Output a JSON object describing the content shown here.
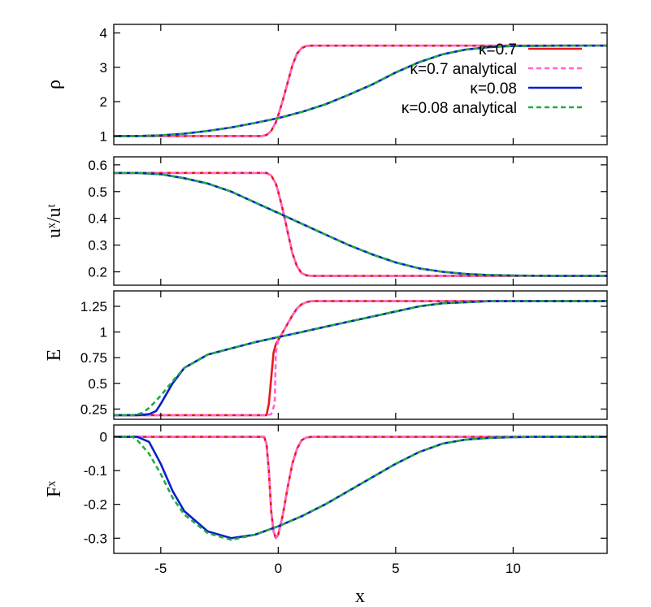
{
  "chart_data": {
    "type": "line",
    "xlabel": "x",
    "xlim": [
      -7,
      14
    ],
    "xticks": [
      -5,
      0,
      5,
      10
    ],
    "xtick_labels": [
      "-5",
      "0",
      "5",
      "10"
    ],
    "grid": false,
    "legend": {
      "placement": "right, inside top panel",
      "entries": [
        {
          "label": "κ=0.7",
          "color": "#e41a1c",
          "style": "solid"
        },
        {
          "label": "κ=0.7 analytical",
          "color": "#ff66cc",
          "style": "dashed"
        },
        {
          "label": "κ=0.08",
          "color": "#0a1ecc",
          "style": "solid"
        },
        {
          "label": "κ=0.08 analytical",
          "color": "#22aa44",
          "style": "dashed"
        }
      ]
    },
    "panels": [
      {
        "ylabel": "ρ",
        "ylim": [
          0.75,
          4.25
        ],
        "yticks": [
          1,
          2,
          3,
          4
        ],
        "ytick_labels": [
          "1",
          "2",
          "3",
          "4"
        ],
        "series": [
          {
            "name": "κ=0.7",
            "color": "#e41a1c",
            "dash": "",
            "x": [
              -7,
              -0.7,
              -0.5,
              -0.3,
              -0.1,
              0,
              0.2,
              0.4,
              0.6,
              0.8,
              1.0,
              1.2,
              1.4,
              14
            ],
            "y": [
              1.0,
              1.0,
              1.03,
              1.15,
              1.4,
              1.6,
              2.05,
              2.55,
              3.05,
              3.4,
              3.56,
              3.62,
              3.63,
              3.63
            ]
          },
          {
            "name": "κ=0.7 analytical",
            "color": "#ff66cc",
            "dash": "6,4",
            "x": [
              -7,
              -0.7,
              -0.5,
              -0.3,
              -0.1,
              0,
              0.2,
              0.4,
              0.6,
              0.8,
              1.0,
              1.2,
              1.4,
              14
            ],
            "y": [
              1.0,
              1.0,
              1.03,
              1.15,
              1.4,
              1.6,
              2.05,
              2.55,
              3.05,
              3.4,
              3.56,
              3.62,
              3.63,
              3.63
            ]
          },
          {
            "name": "κ=0.08",
            "color": "#0a1ecc",
            "dash": "",
            "x": [
              -7,
              -6,
              -5,
              -4,
              -3,
              -2,
              -1,
              0,
              1,
              2,
              3,
              4,
              5,
              6,
              7,
              8,
              9,
              10,
              12,
              14
            ],
            "y": [
              1.0,
              1.0,
              1.02,
              1.07,
              1.15,
              1.25,
              1.38,
              1.52,
              1.7,
              1.92,
              2.2,
              2.5,
              2.85,
              3.15,
              3.38,
              3.52,
              3.59,
              3.62,
              3.63,
              3.63
            ]
          },
          {
            "name": "κ=0.08 analytical",
            "color": "#22aa44",
            "dash": "6,4",
            "x": [
              -7,
              -6,
              -5,
              -4,
              -3,
              -2,
              -1,
              0,
              1,
              2,
              3,
              4,
              5,
              6,
              7,
              8,
              9,
              10,
              12,
              14
            ],
            "y": [
              1.0,
              1.0,
              1.02,
              1.07,
              1.15,
              1.25,
              1.38,
              1.52,
              1.7,
              1.92,
              2.2,
              2.5,
              2.85,
              3.15,
              3.38,
              3.52,
              3.59,
              3.62,
              3.63,
              3.63
            ]
          }
        ]
      },
      {
        "ylabel": "uˣ/uᵗ",
        "ylim": [
          0.15,
          0.63
        ],
        "yticks": [
          0.2,
          0.3,
          0.4,
          0.5,
          0.6
        ],
        "ytick_labels": [
          "0.2",
          "0.3",
          "0.4",
          "0.5",
          "0.6"
        ],
        "series": [
          {
            "name": "κ=0.7",
            "color": "#e41a1c",
            "dash": "",
            "x": [
              -7,
              -0.5,
              -0.3,
              -0.1,
              0,
              0.2,
              0.4,
              0.6,
              0.8,
              1.0,
              1.2,
              1.4,
              14
            ],
            "y": [
              0.57,
              0.57,
              0.56,
              0.53,
              0.5,
              0.43,
              0.35,
              0.27,
              0.22,
              0.195,
              0.187,
              0.185,
              0.185
            ]
          },
          {
            "name": "κ=0.7 analytical",
            "color": "#ff66cc",
            "dash": "6,4",
            "x": [
              -7,
              -0.5,
              -0.3,
              -0.1,
              0,
              0.2,
              0.4,
              0.6,
              0.8,
              1.0,
              1.2,
              1.4,
              14
            ],
            "y": [
              0.57,
              0.57,
              0.56,
              0.53,
              0.5,
              0.43,
              0.35,
              0.27,
              0.22,
              0.195,
              0.187,
              0.185,
              0.185
            ]
          },
          {
            "name": "κ=0.08",
            "color": "#0a1ecc",
            "dash": "",
            "x": [
              -7,
              -6,
              -5,
              -4,
              -3,
              -2,
              -1,
              0,
              1,
              2,
              3,
              4,
              5,
              6,
              7,
              8,
              9,
              10,
              12,
              14
            ],
            "y": [
              0.57,
              0.57,
              0.565,
              0.55,
              0.53,
              0.5,
              0.46,
              0.42,
              0.38,
              0.34,
              0.3,
              0.265,
              0.235,
              0.213,
              0.2,
              0.192,
              0.188,
              0.186,
              0.185,
              0.185
            ]
          },
          {
            "name": "κ=0.08 analytical",
            "color": "#22aa44",
            "dash": "6,4",
            "x": [
              -7,
              -6,
              -5,
              -4,
              -3,
              -2,
              -1,
              0,
              1,
              2,
              3,
              4,
              5,
              6,
              7,
              8,
              9,
              10,
              12,
              14
            ],
            "y": [
              0.57,
              0.57,
              0.565,
              0.55,
              0.53,
              0.5,
              0.46,
              0.42,
              0.38,
              0.34,
              0.3,
              0.265,
              0.235,
              0.213,
              0.2,
              0.192,
              0.188,
              0.186,
              0.185,
              0.185
            ]
          }
        ]
      },
      {
        "ylabel": "E",
        "ylim": [
          0.15,
          1.4
        ],
        "yticks": [
          0.25,
          0.5,
          0.75,
          1.0,
          1.25
        ],
        "ytick_labels": [
          "0.25",
          "0.5",
          "0.75",
          "1",
          "1.25"
        ],
        "series": [
          {
            "name": "κ=0.7",
            "color": "#e41a1c",
            "dash": "",
            "x": [
              -7,
              -0.5,
              -0.4,
              -0.3,
              -0.2,
              -0.1,
              0,
              0.2,
              0.4,
              0.6,
              0.8,
              1.0,
              1.2,
              1.4,
              14
            ],
            "y": [
              0.19,
              0.19,
              0.3,
              0.55,
              0.8,
              0.88,
              0.92,
              1.0,
              1.08,
              1.16,
              1.23,
              1.27,
              1.29,
              1.3,
              1.3
            ]
          },
          {
            "name": "κ=0.7 analytical",
            "color": "#ff66cc",
            "dash": "6,4",
            "x": [
              -7,
              -0.5,
              -0.3,
              -0.15,
              -0.1,
              0,
              0.2,
              0.4,
              0.6,
              0.8,
              1.0,
              1.2,
              1.4,
              14
            ],
            "y": [
              0.19,
              0.19,
              0.2,
              0.3,
              0.8,
              0.92,
              1.0,
              1.08,
              1.16,
              1.23,
              1.27,
              1.29,
              1.3,
              1.3
            ]
          },
          {
            "name": "κ=0.08",
            "color": "#0a1ecc",
            "dash": "",
            "x": [
              -7,
              -6,
              -5.5,
              -5.2,
              -5,
              -4.5,
              -4,
              -3,
              -2,
              -1,
              0,
              1,
              2,
              3,
              4,
              5,
              6,
              7,
              8,
              9,
              10,
              12,
              14
            ],
            "y": [
              0.19,
              0.19,
              0.2,
              0.23,
              0.3,
              0.5,
              0.65,
              0.78,
              0.84,
              0.9,
              0.95,
              1.0,
              1.05,
              1.1,
              1.15,
              1.2,
              1.25,
              1.28,
              1.29,
              1.3,
              1.3,
              1.3,
              1.3
            ]
          },
          {
            "name": "κ=0.08 analytical",
            "color": "#22aa44",
            "dash": "6,4",
            "x": [
              -7,
              -6.2,
              -5.8,
              -5.5,
              -5.2,
              -5,
              -4.5,
              -4,
              -3,
              -2,
              -1,
              0,
              1,
              2,
              3,
              4,
              5,
              6,
              7,
              8,
              9,
              10,
              12,
              14
            ],
            "y": [
              0.19,
              0.19,
              0.21,
              0.26,
              0.33,
              0.38,
              0.52,
              0.65,
              0.78,
              0.84,
              0.9,
              0.95,
              1.0,
              1.05,
              1.1,
              1.15,
              1.2,
              1.25,
              1.28,
              1.29,
              1.3,
              1.3,
              1.3,
              1.3
            ]
          }
        ]
      },
      {
        "ylabel": "Fˣ",
        "ylim": [
          -0.345,
          0.035
        ],
        "yticks": [
          0,
          -0.1,
          -0.2,
          -0.3
        ],
        "ytick_labels": [
          "0",
          "-0.1",
          "-0.2",
          "-0.3"
        ],
        "series": [
          {
            "name": "κ=0.7",
            "color": "#e41a1c",
            "dash": "",
            "x": [
              -7,
              -0.6,
              -0.5,
              -0.4,
              -0.3,
              -0.2,
              -0.1,
              0,
              0.2,
              0.4,
              0.6,
              0.8,
              1.0,
              1.2,
              1.4,
              14
            ],
            "y": [
              0,
              0,
              -0.02,
              -0.1,
              -0.22,
              -0.28,
              -0.3,
              -0.29,
              -0.23,
              -0.15,
              -0.08,
              -0.035,
              -0.01,
              -0.002,
              0,
              0
            ]
          },
          {
            "name": "κ=0.7 analytical",
            "color": "#ff66cc",
            "dash": "6,4",
            "x": [
              -7,
              -0.6,
              -0.5,
              -0.4,
              -0.3,
              -0.2,
              -0.1,
              0,
              0.2,
              0.4,
              0.6,
              0.8,
              1.0,
              1.2,
              1.4,
              14
            ],
            "y": [
              0,
              0,
              -0.02,
              -0.1,
              -0.22,
              -0.28,
              -0.3,
              -0.29,
              -0.23,
              -0.15,
              -0.08,
              -0.035,
              -0.01,
              -0.002,
              0,
              0
            ]
          },
          {
            "name": "κ=0.08",
            "color": "#0a1ecc",
            "dash": "",
            "x": [
              -7,
              -6,
              -5.5,
              -5,
              -4.5,
              -4,
              -3,
              -2,
              -1,
              0,
              1,
              2,
              3,
              4,
              5,
              6,
              7,
              8,
              9,
              10,
              11,
              12,
              14
            ],
            "y": [
              0,
              0,
              -0.015,
              -0.08,
              -0.16,
              -0.22,
              -0.28,
              -0.3,
              -0.29,
              -0.265,
              -0.235,
              -0.2,
              -0.16,
              -0.12,
              -0.08,
              -0.045,
              -0.02,
              -0.008,
              -0.003,
              -0.001,
              0,
              0,
              0
            ]
          },
          {
            "name": "κ=0.08 analytical",
            "color": "#22aa44",
            "dash": "6,4",
            "x": [
              -7,
              -6.2,
              -6,
              -5.5,
              -5,
              -4.5,
              -4,
              -3,
              -2,
              -1,
              0,
              1,
              2,
              3,
              4,
              5,
              6,
              7,
              8,
              9,
              10,
              11,
              12,
              14
            ],
            "y": [
              0,
              0,
              -0.01,
              -0.05,
              -0.11,
              -0.18,
              -0.23,
              -0.285,
              -0.305,
              -0.29,
              -0.265,
              -0.235,
              -0.2,
              -0.16,
              -0.12,
              -0.08,
              -0.045,
              -0.02,
              -0.008,
              -0.003,
              -0.001,
              0,
              0,
              0
            ]
          }
        ]
      }
    ]
  }
}
